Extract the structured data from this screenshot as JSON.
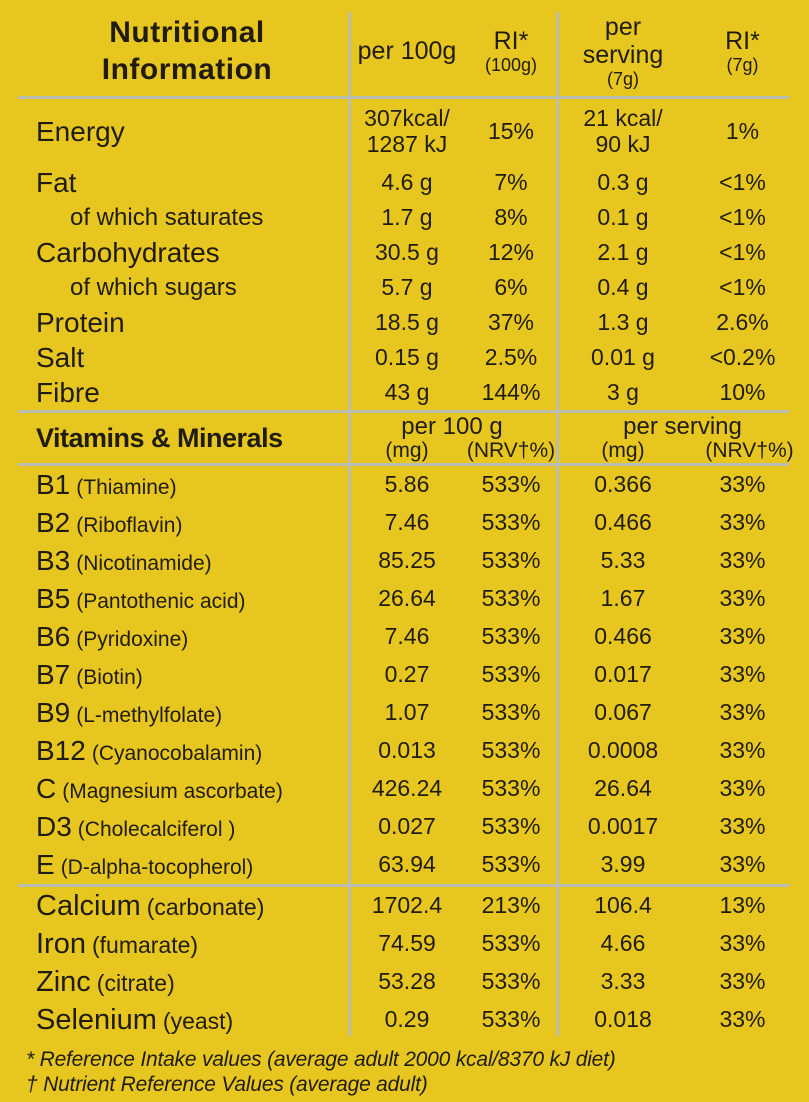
{
  "colors": {
    "background": "#e7c71f",
    "text": "#201c12",
    "divider": "#b9bcb0"
  },
  "header": {
    "title": "Nutritional\nInformation",
    "per_100g": "per 100g",
    "ri_100g": "RI*",
    "ri_100g_sub": "(100g)",
    "per_serving": "per\nserving",
    "per_serving_sub": "(7g)",
    "ri_7g": "RI*",
    "ri_7g_sub": "(7g)"
  },
  "macros": [
    {
      "label": "Energy",
      "indent": false,
      "per100": "307kcal/\n1287 kJ",
      "ri100": "15%",
      "serving": "21 kcal/\n90 kJ",
      "ri7": "1%"
    },
    {
      "label": "Fat",
      "indent": false,
      "per100": "4.6 g",
      "ri100": "7%",
      "serving": "0.3 g",
      "ri7": "<1%"
    },
    {
      "label": "of which saturates",
      "indent": true,
      "per100": "1.7 g",
      "ri100": "8%",
      "serving": "0.1 g",
      "ri7": "<1%"
    },
    {
      "label": "Carbohydrates",
      "indent": false,
      "per100": "30.5 g",
      "ri100": "12%",
      "serving": "2.1 g",
      "ri7": "<1%"
    },
    {
      "label": "of which sugars",
      "indent": true,
      "per100": "5.7 g",
      "ri100": "6%",
      "serving": "0.4 g",
      "ri7": "<1%"
    },
    {
      "label": "Protein",
      "indent": false,
      "per100": "18.5 g",
      "ri100": "37%",
      "serving": "1.3 g",
      "ri7": "2.6%"
    },
    {
      "label": "Salt",
      "indent": false,
      "per100": "0.15 g",
      "ri100": "2.5%",
      "serving": "0.01 g",
      "ri7": "<0.2%"
    },
    {
      "label": "Fibre",
      "indent": false,
      "per100": "43 g",
      "ri100": "144%",
      "serving": "3 g",
      "ri7": "10%"
    }
  ],
  "vitamins_section": {
    "title": "Vitamins & Minerals",
    "per_100g_header": "per 100 g",
    "per_100g_units": [
      "(mg)",
      "(NRV†%)"
    ],
    "per_serving_header": "per serving",
    "per_serving_units": [
      "(mg)",
      "(NRV†%)"
    ]
  },
  "vitamins": [
    {
      "name": "B1",
      "form": "(Thiamine)",
      "per100": "5.86",
      "nrv100": "533%",
      "serving": "0.366",
      "nrv7": "33%"
    },
    {
      "name": "B2",
      "form": "(Riboflavin)",
      "per100": "7.46",
      "nrv100": "533%",
      "serving": "0.466",
      "nrv7": "33%"
    },
    {
      "name": "B3",
      "form": "(Nicotinamide)",
      "per100": "85.25",
      "nrv100": "533%",
      "serving": "5.33",
      "nrv7": "33%"
    },
    {
      "name": "B5",
      "form": "(Pantothenic acid)",
      "per100": "26.64",
      "nrv100": "533%",
      "serving": "1.67",
      "nrv7": "33%"
    },
    {
      "name": "B6",
      "form": "(Pyridoxine)",
      "per100": "7.46",
      "nrv100": "533%",
      "serving": "0.466",
      "nrv7": "33%"
    },
    {
      "name": "B7",
      "form": "(Biotin)",
      "per100": "0.27",
      "nrv100": "533%",
      "serving": "0.017",
      "nrv7": "33%"
    },
    {
      "name": "B9",
      "form": "(L-methylfolate)",
      "per100": "1.07",
      "nrv100": "533%",
      "serving": "0.067",
      "nrv7": "33%"
    },
    {
      "name": "B12",
      "form": "(Cyanocobalamin)",
      "per100": "0.013",
      "nrv100": "533%",
      "serving": "0.0008",
      "nrv7": "33%"
    },
    {
      "name": "C",
      "form": "(Magnesium ascorbate)",
      "per100": "426.24",
      "nrv100": "533%",
      "serving": "26.64",
      "nrv7": "33%"
    },
    {
      "name": "D3",
      "form": "(Cholecalciferol )",
      "per100": "0.027",
      "nrv100": "533%",
      "serving": "0.0017",
      "nrv7": "33%"
    },
    {
      "name": "E",
      "form": "(D-alpha-tocopherol)",
      "per100": "63.94",
      "nrv100": "533%",
      "serving": "3.99",
      "nrv7": "33%"
    }
  ],
  "minerals": [
    {
      "name": "Calcium",
      "form": "(carbonate)",
      "per100": "1702.4",
      "nrv100": "213%",
      "serving": "106.4",
      "nrv7": "13%"
    },
    {
      "name": "Iron",
      "form": "(fumarate)",
      "per100": "74.59",
      "nrv100": "533%",
      "serving": "4.66",
      "nrv7": "33%"
    },
    {
      "name": "Zinc",
      "form": "(citrate)",
      "per100": "53.28",
      "nrv100": "533%",
      "serving": "3.33",
      "nrv7": "33%"
    },
    {
      "name": "Selenium",
      "form": "(yeast)",
      "per100": "0.29",
      "nrv100": "533%",
      "serving": "0.018",
      "nrv7": "33%"
    }
  ],
  "footnotes": [
    "* Reference Intake values (average adult 2000 kcal/8370 kJ diet)",
    "† Nutrient Reference Values (average adult)"
  ]
}
